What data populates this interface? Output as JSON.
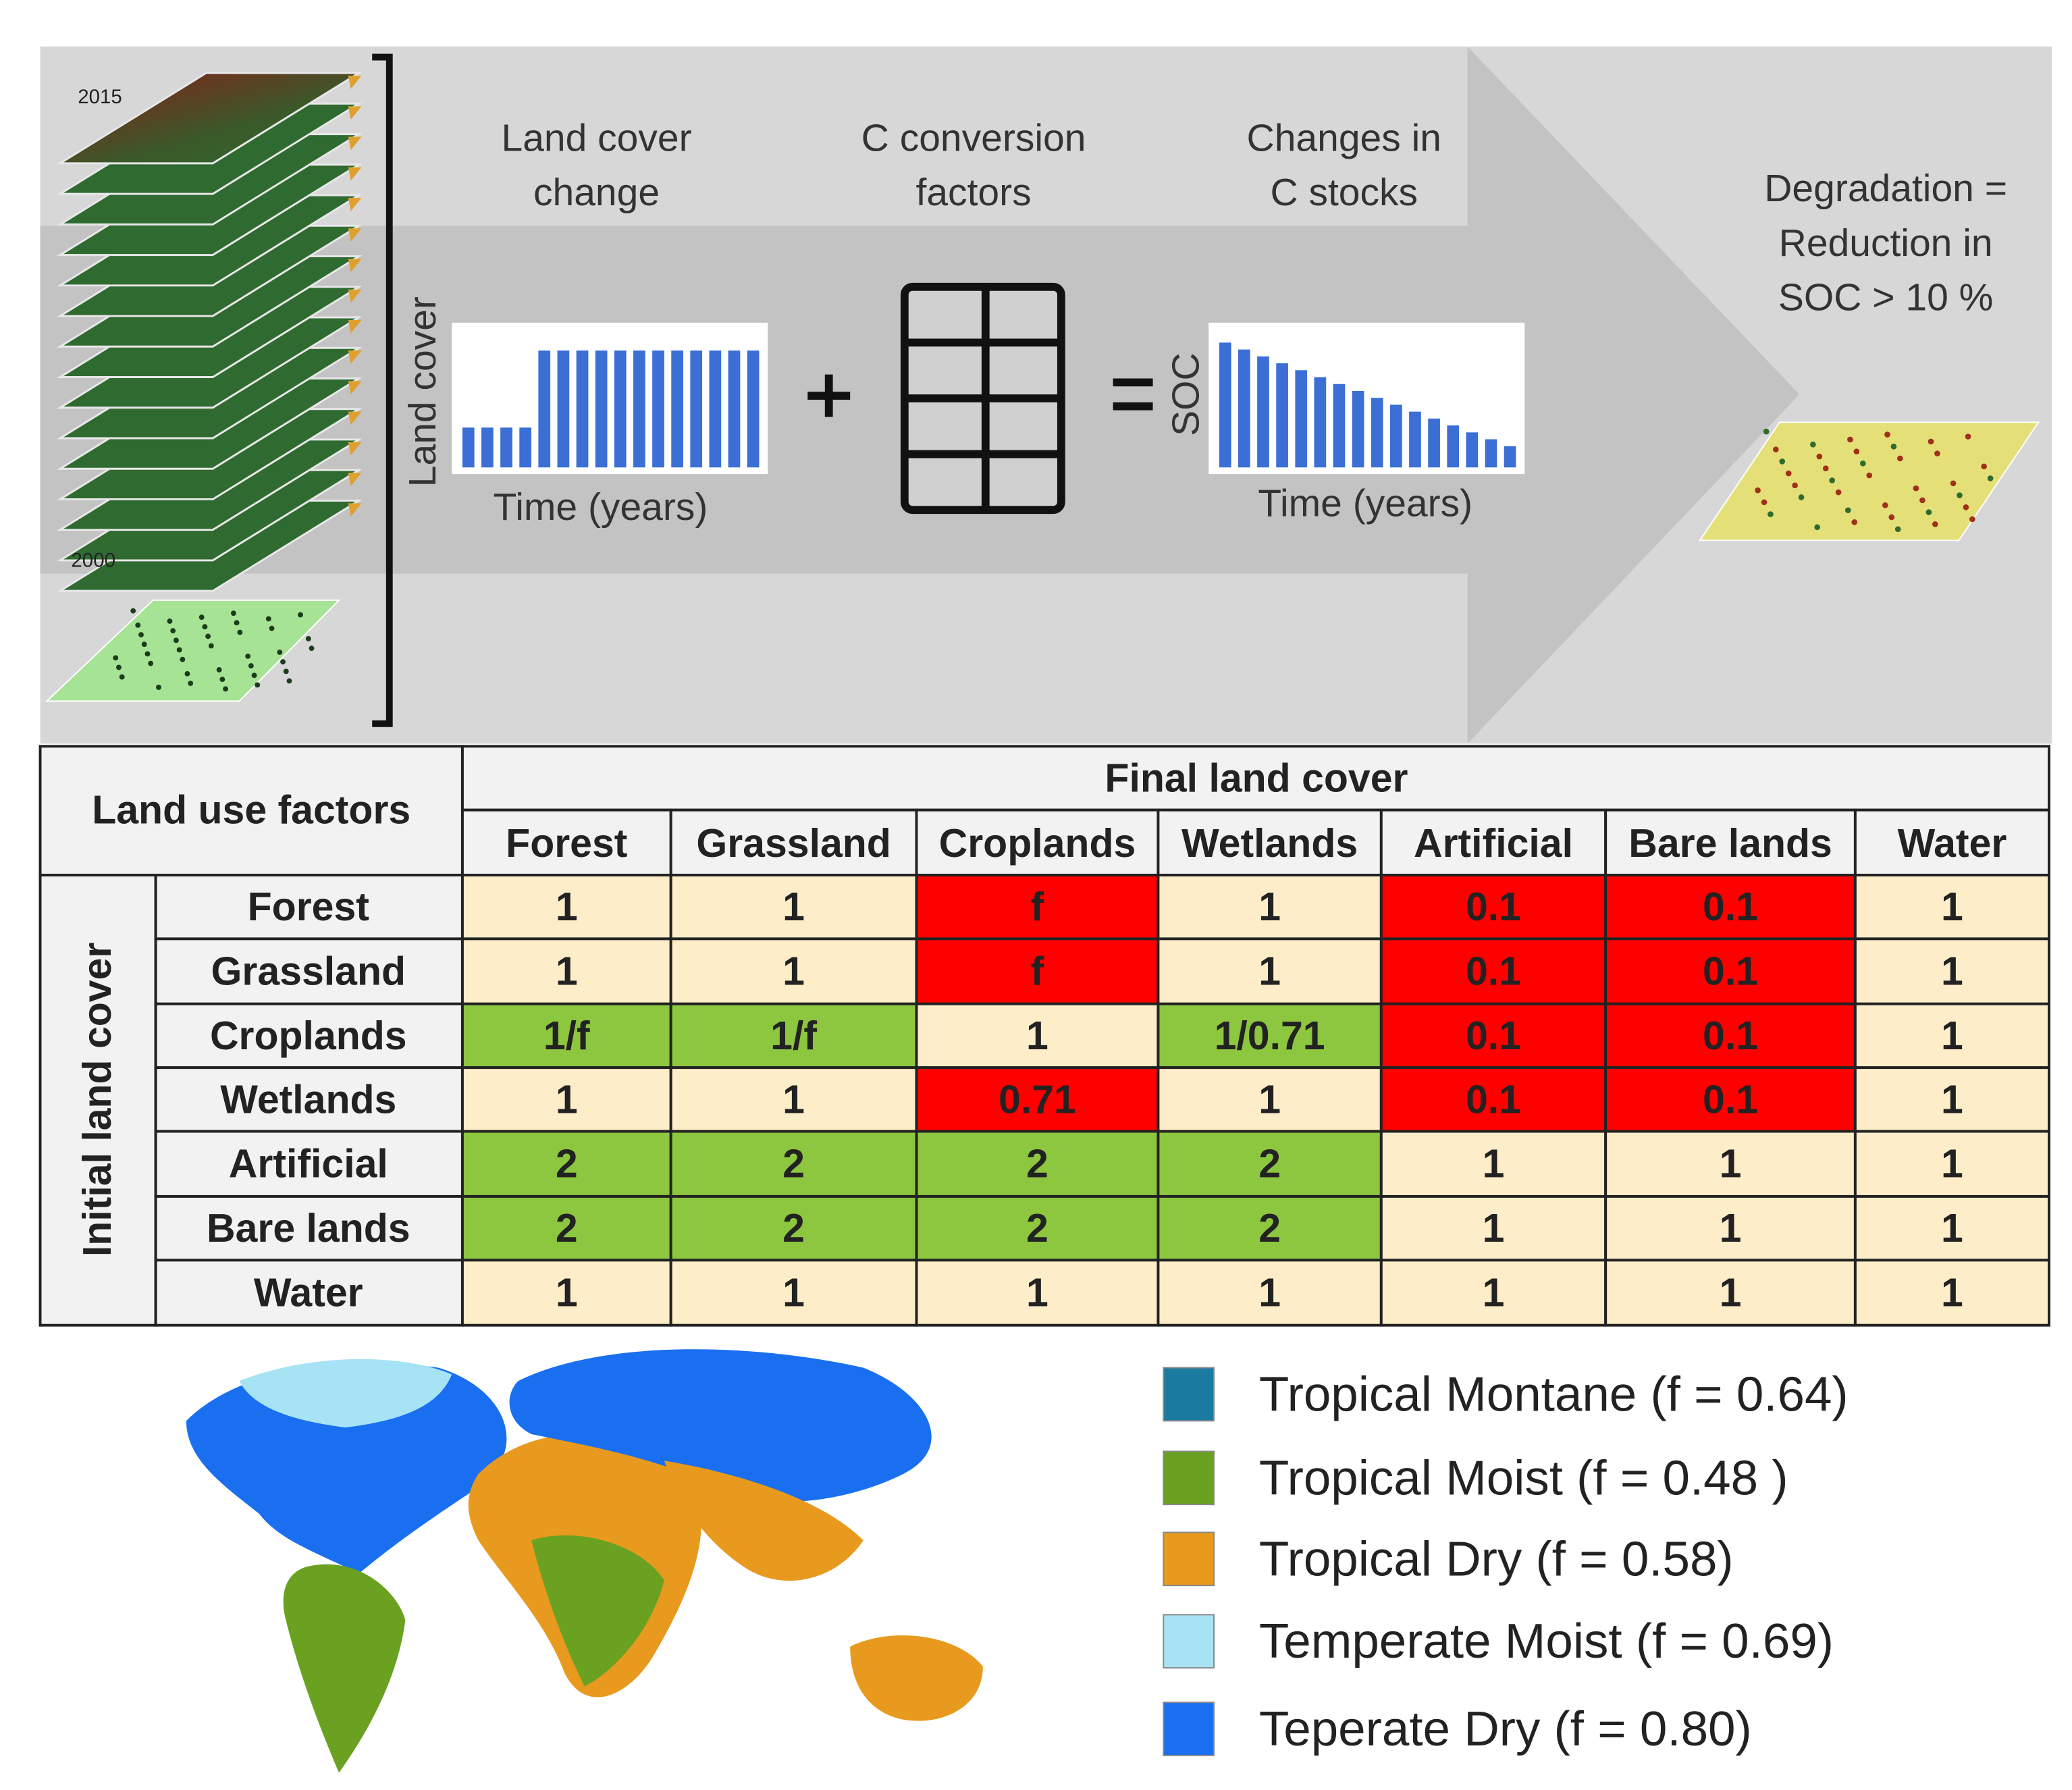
{
  "header": {
    "stack_years": [
      "2015",
      "2000"
    ],
    "land_cover_axis": "Land cover",
    "steps": [
      [
        "Land cover",
        "change"
      ],
      [
        "C conversion",
        "factors"
      ],
      [
        "Changes in",
        "C stocks"
      ]
    ],
    "charts": [
      {
        "x_label": "Time (years)"
      },
      {
        "y_label": "SOC",
        "x_label": "Time (years)"
      }
    ],
    "result": [
      "Degradation =",
      "Reduction in",
      "SOC > 10 %"
    ]
  },
  "table": {
    "title": "Land use factors",
    "column_header": "Final land cover",
    "row_header": "Initial land cover",
    "columns": [
      "Forest",
      "Grassland",
      "Croplands",
      "Wetlands",
      "Artificial",
      "Bare lands",
      "Water"
    ],
    "rows": [
      {
        "label": "Forest",
        "cells": [
          1,
          1,
          "f",
          1,
          0.1,
          0.1,
          1
        ],
        "colors": [
          "#fdedc9",
          "#fdedc9",
          "#ff0000",
          "#fdedc9",
          "#ff0000",
          "#ff0000",
          "#fdedc9"
        ]
      },
      {
        "label": "Grassland",
        "cells": [
          1,
          1,
          "f",
          1,
          0.1,
          0.1,
          1
        ],
        "colors": [
          "#fdedc9",
          "#fdedc9",
          "#ff0000",
          "#fdedc9",
          "#ff0000",
          "#ff0000",
          "#fdedc9"
        ]
      },
      {
        "label": "Croplands",
        "cells": [
          "1/f",
          "1/f",
          1,
          "1/0.71",
          0.1,
          0.1,
          1
        ],
        "colors": [
          "#8dc63f",
          "#8dc63f",
          "#fdedc9",
          "#8dc63f",
          "#ff0000",
          "#ff0000",
          "#fdedc9"
        ]
      },
      {
        "label": "Wetlands",
        "cells": [
          1,
          1,
          0.71,
          1,
          0.1,
          0.1,
          1
        ],
        "colors": [
          "#fdedc9",
          "#fdedc9",
          "#ff0000",
          "#fdedc9",
          "#ff0000",
          "#ff0000",
          "#fdedc9"
        ]
      },
      {
        "label": "Artificial",
        "cells": [
          2,
          2,
          2,
          2,
          1,
          1,
          1
        ],
        "colors": [
          "#8dc63f",
          "#8dc63f",
          "#8dc63f",
          "#8dc63f",
          "#fdedc9",
          "#fdedc9",
          "#fdedc9"
        ]
      },
      {
        "label": "Bare lands",
        "cells": [
          2,
          2,
          2,
          2,
          1,
          1,
          1
        ],
        "colors": [
          "#8dc63f",
          "#8dc63f",
          "#8dc63f",
          "#8dc63f",
          "#fdedc9",
          "#fdedc9",
          "#fdedc9"
        ]
      },
      {
        "label": "Water",
        "cells": [
          1,
          1,
          1,
          1,
          1,
          1,
          1
        ],
        "colors": [
          "#fdedc9",
          "#fdedc9",
          "#fdedc9",
          "#fdedc9",
          "#fdedc9",
          "#fdedc9",
          "#fdedc9"
        ]
      }
    ]
  },
  "legend": [
    {
      "label": "Tropical Montane (f = 0.64)",
      "color": "#1a7aa0"
    },
    {
      "label": "Tropical Moist (f = 0.48 )",
      "color": "#6aa121"
    },
    {
      "label": "Tropical Dry (f = 0.58)",
      "color": "#e89a1f"
    },
    {
      "label": "Temperate Moist (f = 0.69)",
      "color": "#a6e3f5"
    },
    {
      "label": "Teperate Dry (f = 0.80)",
      "color": "#1a6ff0"
    }
  ]
}
